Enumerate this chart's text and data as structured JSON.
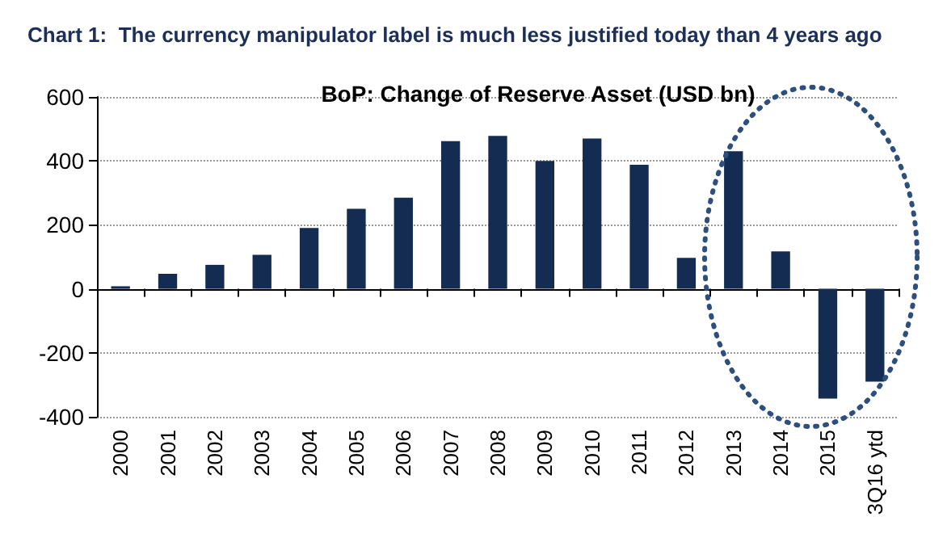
{
  "chart_data": {
    "type": "bar",
    "title": "Chart 1:  The currency manipulator label is much less justified today than 4 years ago",
    "subtitle": "BoP: Change of Reserve Asset (USD bn)",
    "categories": [
      "2000",
      "2001",
      "2002",
      "2003",
      "2004",
      "2005",
      "2006",
      "2007",
      "2008",
      "2009",
      "2010",
      "2011",
      "2012",
      "2013",
      "2014",
      "2015",
      "3Q16 ytd"
    ],
    "values": [
      8,
      47,
      75,
      106,
      190,
      250,
      285,
      462,
      478,
      400,
      470,
      388,
      97,
      430,
      117,
      -343,
      -290
    ],
    "color": "#142b52",
    "ylim": [
      -400,
      600
    ],
    "yticks": [
      -400,
      -200,
      0,
      200,
      400,
      600
    ],
    "grid": "y"
  }
}
